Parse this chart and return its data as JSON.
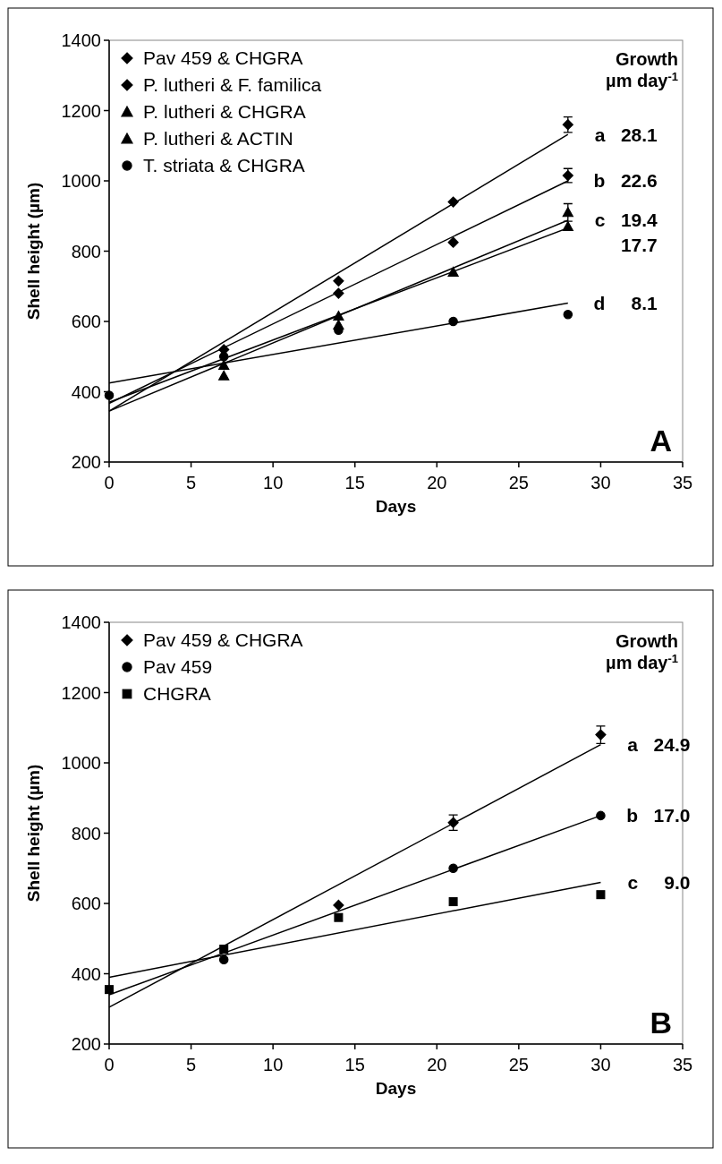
{
  "chart_data": [
    {
      "type": "scatter",
      "ylabel": "Shell height (µm)",
      "xlabel": "Days",
      "xlim": [
        0,
        35
      ],
      "xticks": [
        0,
        5,
        10,
        15,
        20,
        25,
        30,
        35
      ],
      "ylim": [
        200,
        1400
      ],
      "yticks": [
        200,
        400,
        600,
        800,
        1000,
        1200,
        1400
      ],
      "grid": false,
      "legend": "top left",
      "series": [
        {
          "name": "Pav 459 & CHGRA",
          "color": "#000000",
          "marker": "diamond",
          "x": [
            7,
            14,
            21,
            28
          ],
          "values": [
            520,
            715,
            940,
            1160
          ],
          "errors": [
            null,
            null,
            null,
            22
          ]
        },
        {
          "name": "P. lutheri & F. familica",
          "color": "#000000",
          "marker": "diamond",
          "x": [
            14,
            21,
            28
          ],
          "values": [
            680,
            825,
            1015
          ],
          "errors": [
            null,
            null,
            20
          ]
        },
        {
          "name": "P. lutheri & CHGRA",
          "color": "#000000",
          "marker": "triangle",
          "x": [
            7,
            14,
            21,
            28
          ],
          "values": [
            445,
            590,
            740,
            910
          ],
          "errors": [
            null,
            null,
            null,
            25
          ]
        },
        {
          "name": "P. lutheri & ACTIN",
          "color": "#000000",
          "marker": "triangle",
          "x": [
            7,
            14,
            28
          ],
          "values": [
            475,
            615,
            870
          ]
        },
        {
          "name": "T. striata & CHGRA",
          "color": "#000000",
          "marker": "circle",
          "x": [
            0,
            7,
            14,
            21,
            28
          ],
          "values": [
            390,
            500,
            575,
            600,
            620
          ],
          "errors": [
            null,
            null,
            null,
            null,
            null
          ]
        },
        {
          "type": "line",
          "color": "#000000",
          "x": [
            0,
            28
          ],
          "values": [
            345,
            1132
          ]
        },
        {
          "type": "line",
          "color": "#000000",
          "x": [
            0,
            28
          ],
          "values": [
            367,
            1000
          ]
        },
        {
          "type": "line",
          "color": "#000000",
          "x": [
            0,
            28
          ],
          "values": [
            345,
            888
          ]
        },
        {
          "type": "line",
          "color": "#000000",
          "x": [
            0,
            28
          ],
          "values": [
            370,
            866
          ]
        },
        {
          "type": "line",
          "color": "#000000",
          "x": [
            0,
            28
          ],
          "values": [
            425,
            652
          ]
        }
      ],
      "annotations": [
        "Growth",
        "µm day$^{-1}$",
        "a   28.1",
        "b   22.6",
        "c   19.4",
        "17.7",
        "d     8.1",
        "A"
      ]
    },
    {
      "type": "scatter",
      "ylabel": "Shell height (µm)",
      "xlabel": "Days",
      "xlim": [
        0,
        35
      ],
      "xticks": [
        0,
        5,
        10,
        15,
        20,
        25,
        30,
        35
      ],
      "ylim": [
        200,
        1400
      ],
      "yticks": [
        200,
        400,
        600,
        800,
        1000,
        1200,
        1400
      ],
      "grid": false,
      "legend": "top left",
      "series": [
        {
          "name": "Pav 459 & CHGRA",
          "color": "#000000",
          "marker": "diamond",
          "x": [
            14,
            21,
            30
          ],
          "values": [
            595,
            830,
            1080
          ],
          "errors": [
            null,
            22,
            25
          ]
        },
        {
          "name": "Pav 459",
          "color": "#000000",
          "marker": "circle",
          "x": [
            7,
            21,
            30
          ],
          "values": [
            440,
            700,
            850
          ]
        },
        {
          "name": "CHGRA",
          "color": "#000000",
          "marker": "square",
          "x": [
            0,
            7,
            14,
            21,
            30
          ],
          "values": [
            355,
            470,
            560,
            605,
            625
          ],
          "errors": [
            null,
            null,
            null,
            null,
            null
          ]
        },
        {
          "type": "line",
          "color": "#000000",
          "x": [
            0,
            30
          ],
          "values": [
            305,
            1052
          ]
        },
        {
          "type": "line",
          "color": "#000000",
          "x": [
            0,
            30
          ],
          "values": [
            340,
            850
          ]
        },
        {
          "type": "line",
          "color": "#000000",
          "x": [
            0,
            30
          ],
          "values": [
            390,
            660
          ]
        }
      ],
      "annotations": [
        "Growth",
        "µm day$^{-1}$",
        "a   24.9",
        "b   17.0",
        "c     9.0",
        "B"
      ]
    }
  ]
}
